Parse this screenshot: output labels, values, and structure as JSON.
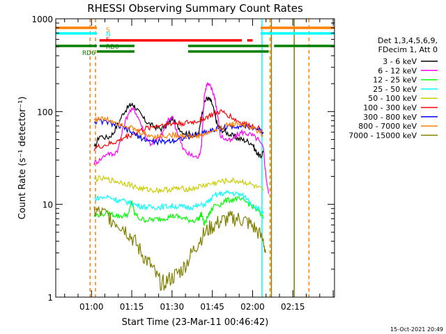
{
  "chart_data": {
    "type": "line",
    "title": "RHESSI Observing Summary Count Rates",
    "xlabel": "Start Time (23-Mar-11 00:46:42)",
    "ylabel": "Count Rate (s⁻¹ detector⁻¹)",
    "yscale": "log",
    "ylim": [
      1,
      1000
    ],
    "xlim_minutes": [
      46.7,
      150.5
    ],
    "x_ticks": [
      {
        "label": "01:00",
        "minutes": 60
      },
      {
        "label": "01:15",
        "minutes": 75
      },
      {
        "label": "01:30",
        "minutes": 90
      },
      {
        "label": "01:45",
        "minutes": 105
      },
      {
        "label": "02:00",
        "minutes": 120
      },
      {
        "label": "02:15",
        "minutes": 135
      }
    ],
    "y_ticks": [
      {
        "label": "1",
        "value": 1
      },
      {
        "label": "10",
        "value": 10
      },
      {
        "label": "100",
        "value": 100
      },
      {
        "label": "1000",
        "value": 1000
      }
    ],
    "legend_header": [
      "Det 1,3,4,5,6,9,",
      "FDecim 1, Att 0"
    ],
    "series": [
      {
        "name": "3 - 6 keV",
        "color": "#000000",
        "x": [
          61,
          63,
          66,
          68,
          70,
          72,
          74,
          75,
          76,
          78,
          80,
          82,
          84,
          86,
          88,
          90,
          92,
          94,
          96,
          98,
          100,
          101,
          102,
          103,
          104,
          105,
          106,
          107,
          108,
          110,
          112,
          114,
          116,
          118,
          120,
          121,
          122,
          123,
          124
        ],
        "y": [
          40,
          55,
          52,
          58,
          75,
          98,
          115,
          120,
          115,
          95,
          80,
          72,
          68,
          65,
          70,
          85,
          70,
          60,
          58,
          55,
          58,
          90,
          125,
          140,
          135,
          120,
          90,
          70,
          65,
          60,
          56,
          52,
          50,
          48,
          45,
          38,
          35,
          32,
          38
        ]
      },
      {
        "name": "6 - 12 keV",
        "color": "#ff00ff",
        "x": [
          61,
          63,
          66,
          68,
          70,
          72,
          74,
          76,
          78,
          80,
          82,
          84,
          86,
          88,
          90,
          92,
          94,
          96,
          98,
          100,
          101,
          102,
          103,
          104,
          105,
          106,
          107,
          108,
          110,
          112,
          114,
          116,
          118,
          120,
          122,
          124,
          125,
          126
        ],
        "y": [
          28,
          30,
          36,
          34,
          40,
          70,
          100,
          105,
          80,
          55,
          45,
          48,
          55,
          75,
          90,
          60,
          40,
          35,
          33,
          32,
          45,
          150,
          200,
          190,
          170,
          140,
          90,
          55,
          50,
          48,
          55,
          60,
          58,
          55,
          50,
          40,
          20,
          13
        ]
      },
      {
        "name": "12 - 25 keV",
        "color": "#00ff00",
        "x": [
          61,
          63,
          66,
          68,
          70,
          72,
          74,
          75,
          76,
          78,
          80,
          82,
          84,
          86,
          88,
          90,
          92,
          94,
          96,
          98,
          100,
          101,
          102,
          103,
          104,
          106,
          108,
          110,
          112,
          114,
          116,
          118,
          120,
          122,
          124
        ],
        "y": [
          7.5,
          7.8,
          8,
          7.8,
          7.5,
          7.5,
          8,
          11,
          8,
          7,
          6.8,
          6.8,
          6.9,
          7,
          7.2,
          7.5,
          7.4,
          7.1,
          6.8,
          6.7,
          7,
          8,
          6,
          7,
          8,
          10,
          10,
          11,
          11.2,
          11.5,
          11,
          10.5,
          9.5,
          8.5,
          7
        ]
      },
      {
        "name": "25 - 50 keV",
        "color": "#00ffff",
        "x": [
          61,
          63,
          66,
          68,
          70,
          72,
          74,
          76,
          78,
          80,
          82,
          84,
          86,
          88,
          90,
          92,
          94,
          96,
          98,
          100,
          102,
          104,
          106,
          108,
          110,
          112,
          114,
          116,
          118,
          120,
          122,
          124
        ],
        "y": [
          11.5,
          11.8,
          12,
          11.6,
          11,
          10.8,
          10.5,
          10,
          9.6,
          9.4,
          9.3,
          9.3,
          9.4,
          9.5,
          9.6,
          9.5,
          9.4,
          9.3,
          9.4,
          9.6,
          10,
          11,
          12.5,
          13,
          13.2,
          13.3,
          13,
          12.5,
          11.5,
          10,
          9,
          8
        ]
      },
      {
        "name": "50 - 100 keV",
        "color": "#cccc00",
        "x": [
          61,
          63,
          66,
          68,
          70,
          72,
          74,
          76,
          78,
          80,
          82,
          84,
          86,
          88,
          90,
          92,
          94,
          96,
          98,
          100,
          102,
          104,
          106,
          108,
          110,
          112,
          114,
          116,
          118,
          120,
          122,
          124
        ],
        "y": [
          18.5,
          19,
          18.5,
          18,
          17.5,
          17,
          16.5,
          15.5,
          14.8,
          14.5,
          14.3,
          14.2,
          14.2,
          14.4,
          14.6,
          14.8,
          14.7,
          14.6,
          14.8,
          15.5,
          16,
          16.5,
          17,
          17.5,
          17.8,
          18,
          17.8,
          17.5,
          17,
          16,
          15,
          14
        ]
      },
      {
        "name": "100 - 300 keV",
        "color": "#ff0000",
        "x": [
          61,
          63,
          66,
          68,
          70,
          72,
          74,
          76,
          78,
          80,
          82,
          84,
          86,
          88,
          90,
          92,
          94,
          96,
          98,
          100,
          102,
          104,
          106,
          108,
          110,
          112,
          114,
          116,
          118,
          120,
          122,
          124
        ],
        "y": [
          40,
          42,
          44,
          46,
          48,
          52,
          55,
          58,
          62,
          65,
          68,
          70,
          72,
          73,
          74,
          75,
          75,
          76,
          77,
          80,
          85,
          90,
          95,
          100,
          95,
          88,
          80,
          75,
          72,
          70,
          68,
          60
        ]
      },
      {
        "name": "300 - 800 keV",
        "color": "#0000ff",
        "x": [
          61,
          63,
          66,
          68,
          70,
          72,
          74,
          76,
          78,
          80,
          82,
          84,
          86,
          88,
          90,
          92,
          94,
          96,
          98,
          100,
          102,
          104,
          106,
          108,
          110,
          112,
          114,
          116,
          118,
          120,
          122,
          124
        ],
        "y": [
          78,
          79,
          77,
          74,
          70,
          66,
          62,
          57,
          53,
          50,
          48,
          47,
          47,
          48,
          49,
          50,
          52,
          53,
          55,
          57,
          60,
          62,
          64,
          66,
          68,
          69,
          70,
          70,
          69,
          67,
          64,
          60
        ]
      },
      {
        "name": "800 - 7000 keV",
        "color": "#ff8000",
        "x": [
          61,
          63,
          66,
          68,
          70,
          72,
          74,
          76,
          78,
          80,
          82,
          84,
          86,
          88,
          90,
          92,
          94,
          96,
          98,
          100,
          102,
          104,
          106,
          108,
          110,
          112,
          114,
          116,
          118,
          120,
          122,
          124
        ],
        "y": [
          83,
          84,
          82,
          79,
          76,
          72,
          68,
          64,
          60,
          57,
          55,
          54,
          54,
          55,
          56,
          56,
          55,
          54,
          54,
          55,
          57,
          60,
          63,
          66,
          70,
          73,
          74,
          73,
          70,
          66,
          62,
          55
        ]
      },
      {
        "name": "7000 - 15000 keV",
        "color": "#808000",
        "x": [
          61,
          63,
          66,
          68,
          70,
          72,
          74,
          76,
          78,
          80,
          82,
          84,
          86,
          88,
          90,
          92,
          94,
          96,
          98,
          100,
          102,
          104,
          106,
          108,
          110,
          112,
          114,
          116,
          118,
          120,
          122,
          124,
          125
        ],
        "y": [
          8.5,
          8.2,
          7.5,
          6.8,
          6.2,
          5.6,
          4.8,
          4,
          3.2,
          2.6,
          2.2,
          1.7,
          1.4,
          1.5,
          1.6,
          1.8,
          2,
          2.5,
          3.2,
          4,
          4.8,
          5.5,
          6,
          6.5,
          6.8,
          7,
          7,
          6.8,
          6.4,
          5.8,
          5,
          4,
          3
        ]
      }
    ],
    "status_bars": [
      {
        "label": "S",
        "color": "#ff8000",
        "segments": [
          [
            46.7,
            62
          ],
          [
            123,
            150.5
          ]
        ]
      },
      {
        "label": "N",
        "color": "#00ffff",
        "segments": [
          [
            46.7,
            62
          ],
          [
            123,
            150.5
          ]
        ]
      },
      {
        "label": "F",
        "color": "#ff0000",
        "segments": [
          [
            63,
            116
          ],
          [
            118,
            120
          ]
        ]
      },
      {
        "label": "RD0",
        "color": "#008000",
        "segments": [
          [
            46.7,
            62
          ],
          [
            63,
            76
          ],
          [
            96,
            126
          ],
          [
            128,
            150.5
          ]
        ]
      },
      {
        "label": "RD6",
        "color": "#008000",
        "segments": [
          [
            62,
            76
          ],
          [
            96,
            126
          ]
        ]
      }
    ],
    "vertical_lines": [
      {
        "minutes": 59.5,
        "color": "#ff8000",
        "style": "dashed"
      },
      {
        "minutes": 61.5,
        "color": "#ff8000",
        "style": "dashed"
      },
      {
        "minutes": 123.5,
        "color": "#00ffff",
        "style": "solid"
      },
      {
        "minutes": 126.5,
        "color": "#ff8000",
        "style": "dashed"
      },
      {
        "minutes": 127,
        "color": "#808000",
        "style": "solid"
      },
      {
        "minutes": 135.5,
        "color": "#808000",
        "style": "solid"
      },
      {
        "minutes": 141,
        "color": "#ff8000",
        "style": "dashed"
      }
    ]
  },
  "footer_date": "15-Oct-2021 20:49"
}
